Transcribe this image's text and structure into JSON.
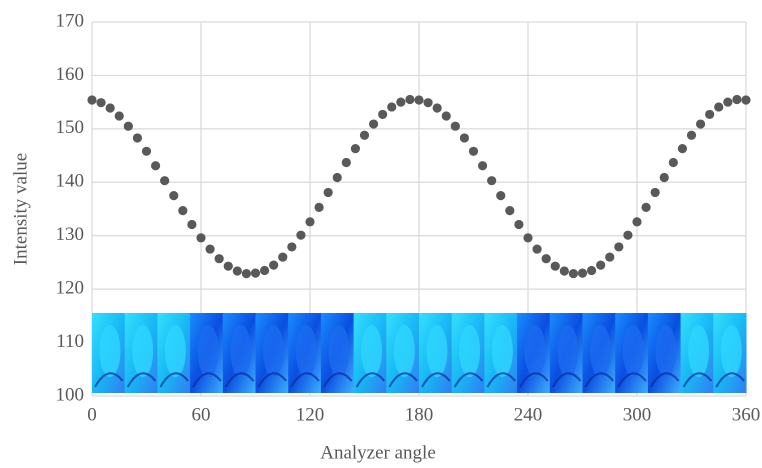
{
  "chart_data": {
    "type": "scatter",
    "x_label": "Analyzer angle",
    "y_label": "Intensity value",
    "x": [
      0,
      5,
      10,
      15,
      20,
      25,
      30,
      35,
      40,
      45,
      50,
      55,
      60,
      65,
      70,
      75,
      80,
      85,
      90,
      95,
      100,
      105,
      110,
      115,
      120,
      125,
      130,
      135,
      140,
      145,
      150,
      155,
      160,
      165,
      170,
      175,
      180,
      185,
      190,
      195,
      200,
      205,
      210,
      215,
      220,
      225,
      230,
      235,
      240,
      245,
      250,
      255,
      260,
      265,
      270,
      275,
      280,
      285,
      290,
      295,
      300,
      305,
      310,
      315,
      320,
      325,
      330,
      335,
      340,
      345,
      350,
      355,
      360
    ],
    "values": [
      155.4,
      154.9,
      153.9,
      152.4,
      150.5,
      148.3,
      145.8,
      143.1,
      140.3,
      137.5,
      134.7,
      132.1,
      129.6,
      127.5,
      125.7,
      124.3,
      123.4,
      122.9,
      123.0,
      123.5,
      124.5,
      126.0,
      127.9,
      130.1,
      132.6,
      135.3,
      138.1,
      140.9,
      143.7,
      146.3,
      148.8,
      150.9,
      152.7,
      154.1,
      155.0,
      155.5,
      155.4,
      154.9,
      153.9,
      152.4,
      150.5,
      148.3,
      145.8,
      143.1,
      140.3,
      137.5,
      134.7,
      132.1,
      129.6,
      127.5,
      125.7,
      124.3,
      123.4,
      122.9,
      123.0,
      123.5,
      124.5,
      126.0,
      127.9,
      130.1,
      132.6,
      135.3,
      138.1,
      140.9,
      143.7,
      146.3,
      148.8,
      150.9,
      152.7,
      154.1,
      155.0,
      155.5,
      155.4
    ],
    "color": "#595959",
    "xlim": [
      0,
      360
    ],
    "xticks": [
      0,
      60,
      120,
      180,
      240,
      300,
      360
    ],
    "ylim": [
      100,
      170
    ],
    "yticks": [
      100,
      110,
      120,
      130,
      140,
      150,
      160,
      170
    ],
    "grid": true
  }
}
